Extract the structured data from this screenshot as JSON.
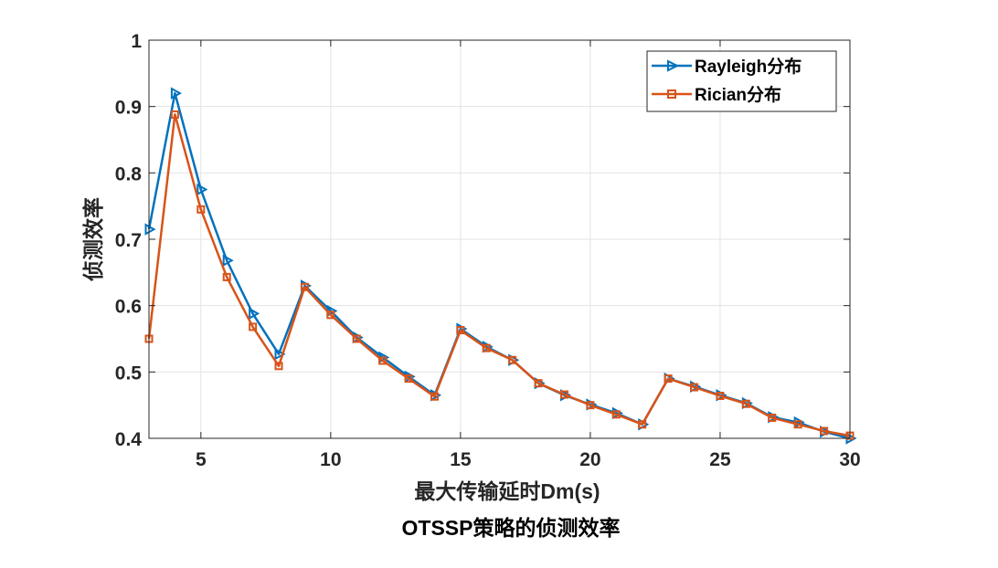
{
  "chart_data": {
    "type": "line",
    "title": "OTSSP策略的侦测效率",
    "xlabel": "最大传输延时Dm(s)",
    "ylabel": "侦测效率",
    "xlim": [
      3,
      30
    ],
    "ylim": [
      0.4,
      1
    ],
    "xticks": [
      5,
      10,
      15,
      20,
      25,
      30
    ],
    "xtick_labels": [
      "5",
      "10",
      "15",
      "20",
      "25",
      "30"
    ],
    "yticks": [
      0.4,
      0.5,
      0.6,
      0.7,
      0.8,
      0.9,
      1
    ],
    "ytick_labels": [
      "0.4",
      "0.5",
      "0.6",
      "0.7",
      "0.8",
      "0.9",
      "1"
    ],
    "grid": true,
    "legend_position": "top-right",
    "x": [
      3,
      4,
      5,
      6,
      7,
      8,
      9,
      10,
      11,
      12,
      13,
      14,
      15,
      16,
      17,
      18,
      19,
      20,
      21,
      22,
      23,
      24,
      25,
      26,
      27,
      28,
      29,
      30
    ],
    "series": [
      {
        "name": "Rayleigh分布",
        "color": "#0072BD",
        "marker": "triangle-right",
        "values": [
          0.715,
          0.92,
          0.775,
          0.668,
          0.588,
          0.527,
          0.63,
          0.592,
          0.552,
          0.522,
          0.493,
          0.465,
          0.565,
          0.538,
          0.518,
          0.483,
          0.465,
          0.451,
          0.438,
          0.421,
          0.49,
          0.478,
          0.465,
          0.453,
          0.432,
          0.424,
          0.41,
          0.4
        ]
      },
      {
        "name": "Rician分布",
        "color": "#D95319",
        "marker": "square",
        "values": [
          0.55,
          0.888,
          0.745,
          0.643,
          0.568,
          0.509,
          0.628,
          0.586,
          0.55,
          0.517,
          0.49,
          0.463,
          0.563,
          0.536,
          0.518,
          0.483,
          0.466,
          0.45,
          0.436,
          0.421,
          0.49,
          0.477,
          0.464,
          0.452,
          0.431,
          0.421,
          0.411,
          0.404
        ]
      }
    ]
  }
}
